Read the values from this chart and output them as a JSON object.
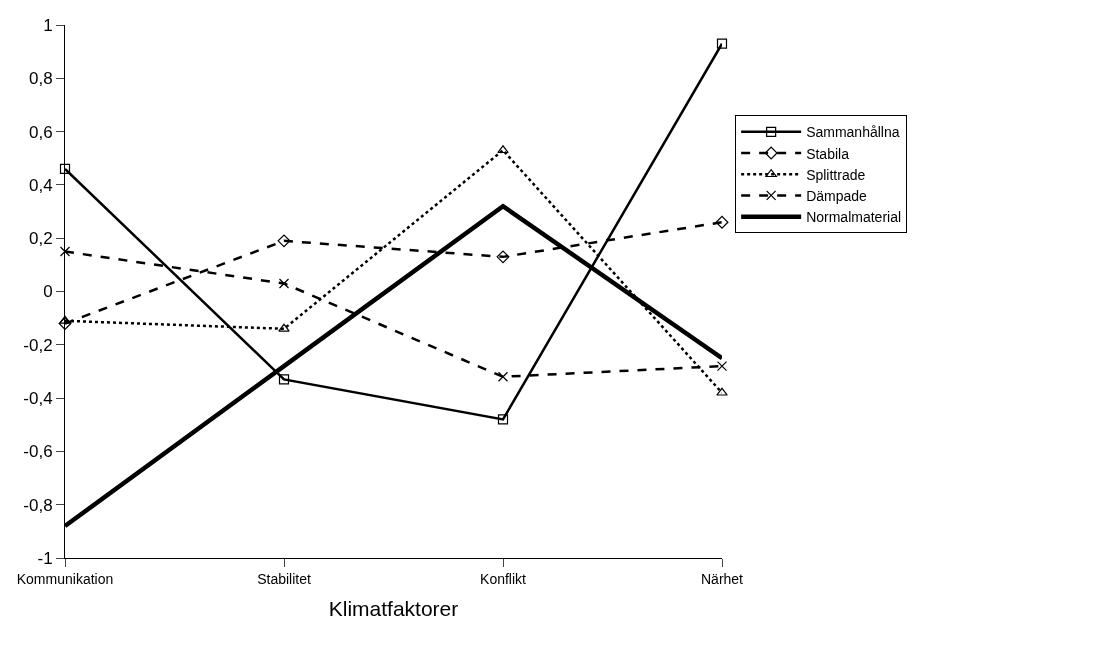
{
  "chart_data": {
    "type": "line",
    "xlabel": "Klimatfaktorer",
    "categories": [
      "Kommunikation",
      "Stabilitet",
      "Konflikt",
      "Närhet"
    ],
    "series": [
      {
        "name": "Sammanhållna",
        "color": "#000000",
        "marker": "square",
        "line_style": "solid",
        "values": [
          0.46,
          -0.33,
          -0.48,
          0.93
        ]
      },
      {
        "name": "Stabila",
        "color": "#000000",
        "marker": "diamond",
        "line_style": "dashed",
        "values": [
          -0.12,
          0.19,
          0.13,
          0.26
        ]
      },
      {
        "name": "Splittrade",
        "color": "#000000",
        "marker": "triangle",
        "line_style": "dotted",
        "values": [
          -0.11,
          -0.14,
          0.53,
          -0.38
        ]
      },
      {
        "name": "Dämpade",
        "color": "#000000",
        "marker": "cross",
        "line_style": "dashed",
        "values": [
          0.15,
          0.03,
          -0.32,
          -0.28
        ]
      },
      {
        "name": "Normalmaterial",
        "color": "#000000",
        "marker": "none",
        "line_style": "solid",
        "values": [
          -0.88,
          -0.28,
          0.32,
          -0.25
        ]
      }
    ],
    "ylim": [
      -1,
      1
    ],
    "yticks": [
      {
        "value": -1,
        "label": "-1"
      },
      {
        "value": -0.8,
        "label": "-0,8"
      },
      {
        "value": -0.6,
        "label": "-0,6"
      },
      {
        "value": -0.4,
        "label": "-0,4"
      },
      {
        "value": -0.2,
        "label": "-0,2"
      },
      {
        "value": 0,
        "label": "0"
      },
      {
        "value": 0.2,
        "label": "0,2"
      },
      {
        "value": 0.4,
        "label": "0,4"
      },
      {
        "value": 0.6,
        "label": "0,6"
      },
      {
        "value": 0.8,
        "label": "0,8"
      },
      {
        "value": 1,
        "label": "1"
      }
    ],
    "legend": "right"
  }
}
